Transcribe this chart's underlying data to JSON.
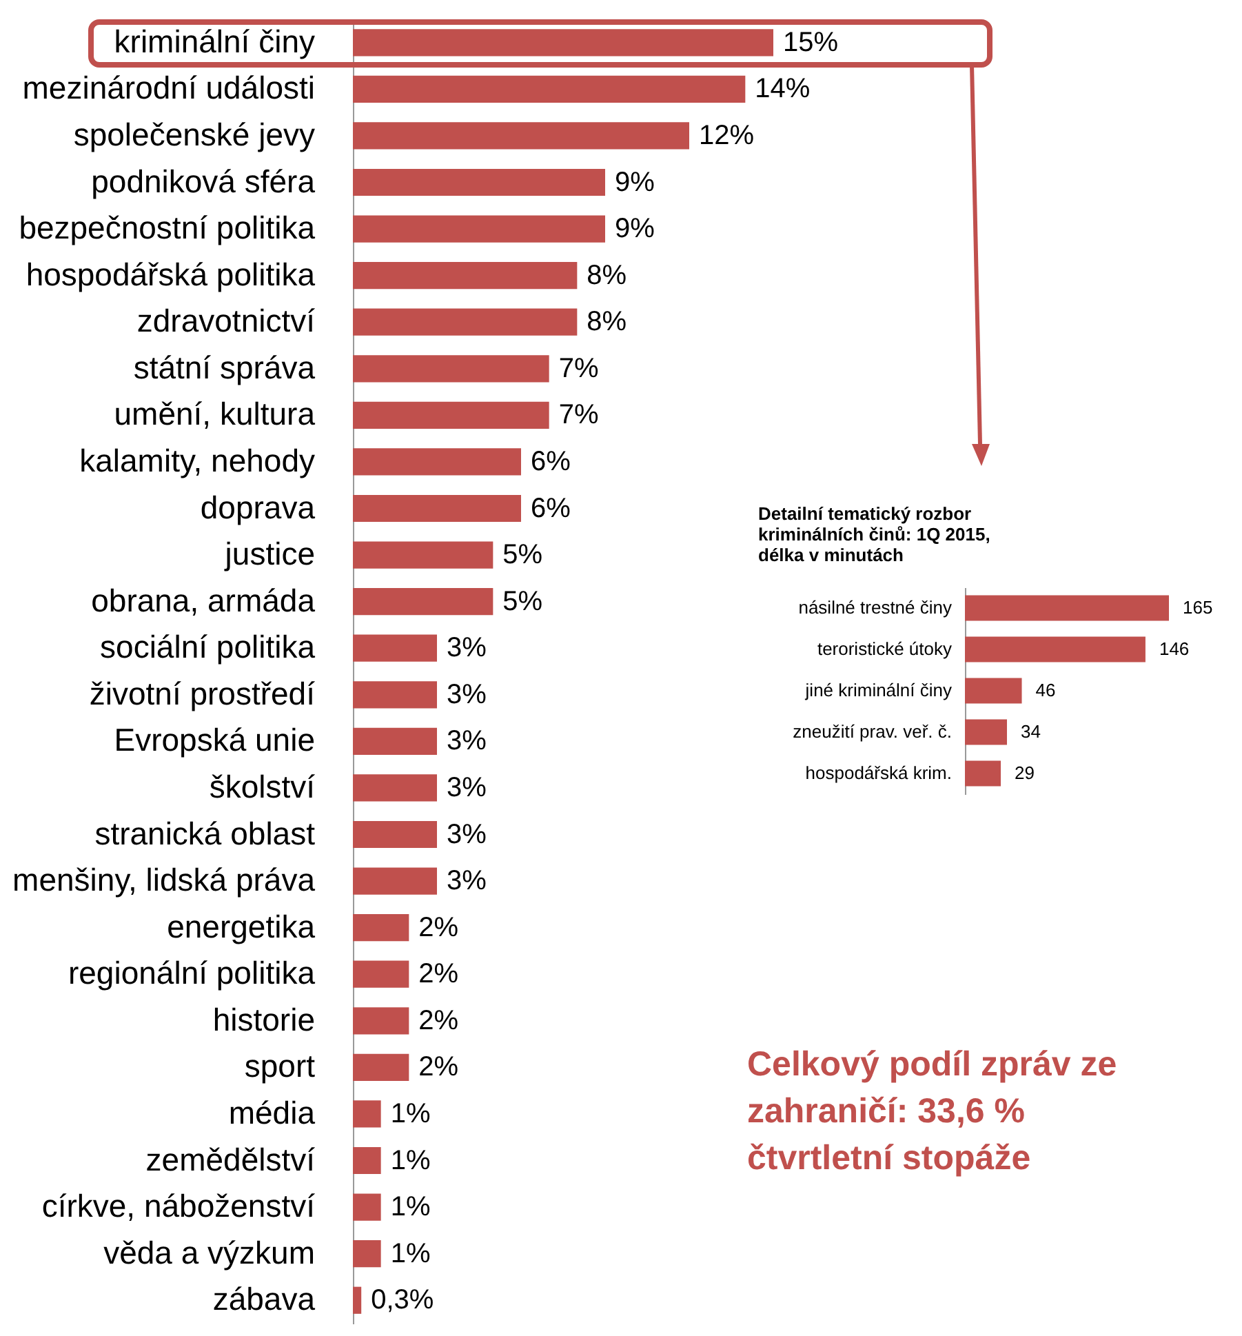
{
  "chart_data": [
    {
      "type": "bar",
      "orientation": "horizontal",
      "categories": [
        "kriminální činy",
        "mezinárodní události",
        "společenské jevy",
        "podniková sféra",
        "bezpečnostní politika",
        "hospodářská politika",
        "zdravotnictví",
        "státní správa",
        "umění, kultura",
        "kalamity, nehody",
        "doprava",
        "justice",
        "obrana, armáda",
        "sociální politika",
        "životní prostředí",
        "Evropská unie",
        "školství",
        "stranická oblast",
        "menšiny, lidská práva",
        "energetika",
        "regionální politika",
        "historie",
        "sport",
        "média",
        "zemědělství",
        "církve, náboženství",
        "věda a výzkum",
        "zábava"
      ],
      "values": [
        15,
        14,
        12,
        9,
        9,
        8,
        8,
        7,
        7,
        6,
        6,
        5,
        5,
        3,
        3,
        3,
        3,
        3,
        3,
        2,
        2,
        2,
        2,
        1,
        1,
        1,
        1,
        0.3
      ],
      "value_labels": [
        "15%",
        "14%",
        "12%",
        "9%",
        "9%",
        "8%",
        "8%",
        "7%",
        "7%",
        "6%",
        "6%",
        "5%",
        "5%",
        "3%",
        "3%",
        "3%",
        "3%",
        "3%",
        "3%",
        "2%",
        "2%",
        "2%",
        "2%",
        "1%",
        "1%",
        "1%",
        "1%",
        "0,3%"
      ],
      "color": "#c0504d",
      "annotations": [
        "Celkový podíl zpráv ze zahraničí: 33,6 % čtvrtletní stopáže"
      ]
    },
    {
      "type": "bar",
      "orientation": "horizontal",
      "title": "Detailní tematický rozbor kriminálních činů: 1Q 2015, délka v minutách",
      "categories": [
        "násilné trestné činy",
        "teroristické útoky",
        "jiné kriminální činy",
        "zneužití prav. veř. č.",
        "hospodářská krim."
      ],
      "values": [
        165,
        146,
        46,
        34,
        29
      ],
      "color": "#c0504d",
      "data_labels": true
    }
  ]
}
